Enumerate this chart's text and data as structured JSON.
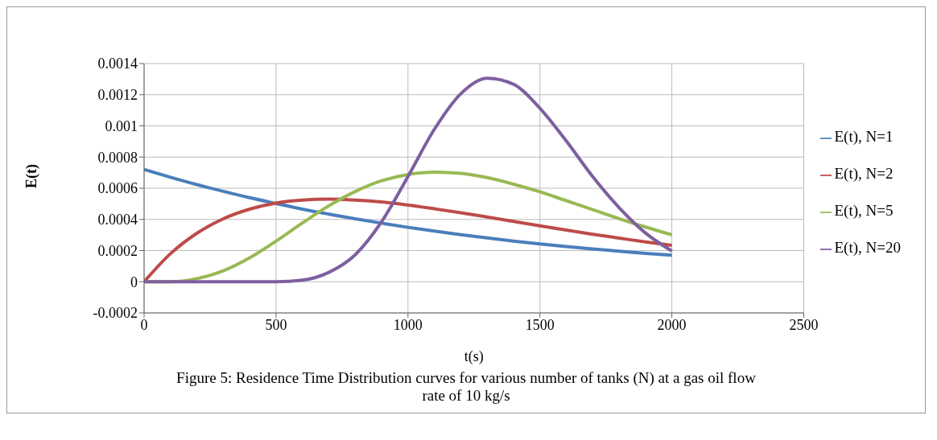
{
  "chart_data": {
    "type": "line",
    "xlabel": "t(s)",
    "ylabel": "E(t)",
    "annotations": [
      "Figure 5: Residence Time Distribution curves for various number of tanks (N) at a gas oil flow rate of 10 kg/s"
    ],
    "x": [
      0,
      100,
      200,
      300,
      400,
      500,
      600,
      700,
      800,
      900,
      1000,
      1100,
      1200,
      1300,
      1400,
      1500,
      1600,
      1700,
      1800,
      1900,
      2000
    ],
    "series": [
      {
        "name": "E(t), N=1",
        "color": "#4a7ebb",
        "values": [
          0.00072,
          0.00067,
          0.000623,
          0.00058,
          0.000539,
          0.000502,
          0.000466,
          0.000434,
          0.000404,
          0.000376,
          0.000349,
          0.000325,
          0.000302,
          0.000281,
          0.000261,
          0.000243,
          0.000226,
          0.00021,
          0.000196,
          0.000182,
          0.00017
        ]
      },
      {
        "name": "E(t), N=2",
        "color": "#be4b48",
        "values": [
          0,
          0.00018,
          0.000311,
          0.000404,
          0.000466,
          0.000505,
          0.000524,
          0.00053,
          0.000524,
          0.000512,
          0.000492,
          0.000468,
          0.000443,
          0.000415,
          0.000387,
          0.000359,
          0.000332,
          0.000305,
          0.00028,
          0.000255,
          0.000233
        ]
      },
      {
        "name": "E(t), N=5",
        "color": "#98b954",
        "values": [
          0,
          0,
          2e-05,
          7e-05,
          0.000153,
          0.00026,
          0.000377,
          0.000487,
          0.000579,
          0.000648,
          0.000688,
          0.000703,
          0.000695,
          0.000668,
          0.000626,
          0.000577,
          0.00052,
          0.000463,
          0.000405,
          0.000351,
          0.000301
        ]
      },
      {
        "name": "E(t), N=20",
        "color": "#7d5fa0",
        "values": [
          0,
          0,
          0,
          0,
          0,
          0,
          1e-05,
          6e-05,
          0.000173,
          0.000385,
          0.000675,
          0.000978,
          0.001206,
          0.001306,
          0.001267,
          0.001113,
          0.000903,
          0.000675,
          0.000476,
          0.000313,
          0.000197
        ]
      }
    ],
    "xlim": [
      0,
      2500
    ],
    "xticks": [
      0,
      500,
      1000,
      1500,
      2000,
      2500
    ],
    "ylim": [
      -0.0002,
      0.0014
    ],
    "yticks": [
      -0.0002,
      0,
      0.0002,
      0.0004,
      0.0006,
      0.0008,
      0.001,
      0.0012,
      0.0014
    ],
    "grid": true,
    "legend": "right",
    "marker": "none",
    "line_style": "solid"
  }
}
